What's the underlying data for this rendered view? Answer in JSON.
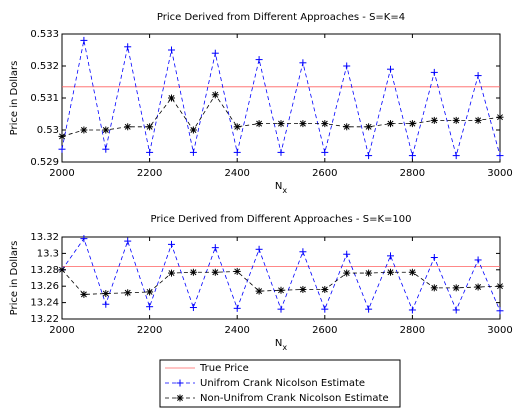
{
  "chart_data": [
    {
      "type": "line",
      "title": "Price Derived from Different Approaches - S=K=4",
      "xlabel": "N",
      "xlabel_sub": "x",
      "ylabel": "Price in Dollars",
      "x": [
        2000,
        2050,
        2100,
        2150,
        2200,
        2250,
        2300,
        2350,
        2400,
        2450,
        2500,
        2550,
        2600,
        2650,
        2700,
        2750,
        2800,
        2850,
        2900,
        2950,
        3000
      ],
      "xlim": [
        2000,
        3000
      ],
      "xticks": [
        2000,
        2200,
        2400,
        2600,
        2800,
        3000
      ],
      "ylim": [
        0.529,
        0.533
      ],
      "yticks": [
        0.529,
        0.53,
        0.531,
        0.532,
        0.533
      ],
      "grid": false,
      "series": [
        {
          "name": "True Price",
          "color": "#ff6060",
          "line_style": "solid",
          "marker": "none",
          "x": [
            2000,
            3000
          ],
          "values": [
            0.53135,
            0.53135
          ]
        },
        {
          "name": "Unifrom Crank Nicolson Estimate",
          "color": "#0000ff",
          "line_style": "dashed",
          "marker": "plus",
          "values": [
            0.5294,
            0.5328,
            0.5294,
            0.5326,
            0.5293,
            0.5325,
            0.5293,
            0.5324,
            0.5293,
            0.5322,
            0.5293,
            0.5321,
            0.5293,
            0.532,
            0.5292,
            0.5319,
            0.5292,
            0.5318,
            0.5292,
            0.5317,
            0.5292
          ]
        },
        {
          "name": "Non-Unifrom Crank Nicolson Estimate",
          "color": "#000000",
          "line_style": "dashed",
          "marker": "star",
          "values": [
            0.5298,
            0.53,
            0.53,
            0.5301,
            0.5301,
            0.531,
            0.53,
            0.5311,
            0.5301,
            0.5302,
            0.5302,
            0.5302,
            0.5302,
            0.5301,
            0.5301,
            0.5302,
            0.5302,
            0.5303,
            0.5303,
            0.5303,
            0.5304
          ]
        }
      ]
    },
    {
      "type": "line",
      "title": "Price Derived from Different Approaches - S=K=100",
      "xlabel": "N",
      "xlabel_sub": "x",
      "ylabel": "Price in Dollars",
      "x": [
        2000,
        2050,
        2100,
        2150,
        2200,
        2250,
        2300,
        2350,
        2400,
        2450,
        2500,
        2550,
        2600,
        2650,
        2700,
        2750,
        2800,
        2850,
        2900,
        2950,
        3000
      ],
      "xlim": [
        2000,
        3000
      ],
      "xticks": [
        2000,
        2200,
        2400,
        2600,
        2800,
        3000
      ],
      "ylim": [
        13.22,
        13.32
      ],
      "yticks": [
        13.22,
        13.24,
        13.26,
        13.28,
        13.3,
        13.32
      ],
      "grid": false,
      "series": [
        {
          "name": "True Price",
          "color": "#ff6060",
          "line_style": "solid",
          "marker": "none",
          "x": [
            2000,
            3000
          ],
          "values": [
            13.284,
            13.284
          ]
        },
        {
          "name": "Unifrom Crank Nicolson Estimate",
          "color": "#0000ff",
          "line_style": "dashed",
          "marker": "plus",
          "values": [
            13.28,
            13.318,
            13.238,
            13.315,
            13.235,
            13.311,
            13.234,
            13.307,
            13.233,
            13.305,
            13.232,
            13.302,
            13.232,
            13.299,
            13.232,
            13.297,
            13.231,
            13.295,
            13.231,
            13.292,
            13.23
          ]
        },
        {
          "name": "Non-Unifrom Crank Nicolson Estimate",
          "color": "#000000",
          "line_style": "dashed",
          "marker": "star",
          "values": [
            13.28,
            13.25,
            13.251,
            13.252,
            13.253,
            13.276,
            13.277,
            13.277,
            13.278,
            13.254,
            13.255,
            13.256,
            13.256,
            13.276,
            13.276,
            13.277,
            13.277,
            13.258,
            13.258,
            13.259,
            13.26
          ]
        }
      ]
    }
  ]
}
